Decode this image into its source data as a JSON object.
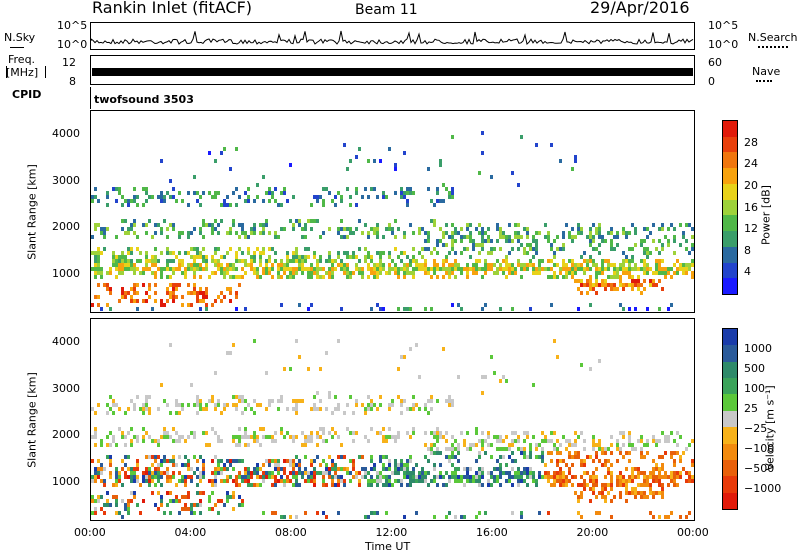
{
  "header": {
    "title": "Rankin Inlet (fitACF)",
    "beam": "Beam 11",
    "date": "29/Apr/2016"
  },
  "nsky_panel": {
    "left_label": "N.Sky",
    "right_label": "N.Search",
    "tick_top": "10^5",
    "tick_bottom": "10^0"
  },
  "freq_panel": {
    "left_label_1": "Freq.",
    "left_label_2": "[MHz]",
    "left_ticks": [
      "12",
      "8"
    ],
    "right_label": "Nave",
    "right_ticks": [
      "60",
      "0"
    ]
  },
  "cpid_panel": {
    "label": "CPID",
    "value": "twofsound 3503"
  },
  "chart_data": [
    {
      "type": "heatmap",
      "name": "power",
      "ylabel": "Slant Range [km]",
      "y_ticks": [
        1000,
        2000,
        3000,
        4000
      ],
      "ylim": [
        180,
        4500
      ],
      "x_ticks": [
        "00:00",
        "04:00",
        "08:00",
        "12:00",
        "16:00",
        "20:00",
        "00:00"
      ],
      "colorbar": {
        "label": "Power [dB]",
        "ticks": [
          4,
          8,
          12,
          16,
          20,
          24,
          28
        ],
        "colors": [
          "#1a1aff",
          "#2244cc",
          "#2a6aa0",
          "#3a9e6a",
          "#50b848",
          "#9ed23a",
          "#e8d21a",
          "#f7a20e",
          "#f0760e",
          "#e8400c",
          "#e01a0a"
        ]
      }
    },
    {
      "type": "heatmap",
      "name": "velocity",
      "ylabel": "Slant Range [km]",
      "y_ticks": [
        1000,
        2000,
        3000,
        4000
      ],
      "ylim": [
        180,
        4500
      ],
      "x_ticks": [
        "00:00",
        "04:00",
        "08:00",
        "12:00",
        "16:00",
        "20:00",
        "00:00"
      ],
      "xlabel": "Time UT",
      "colorbar": {
        "label": "Velocity [m s⁻¹]",
        "ticks": [
          "1000",
          "500",
          "100",
          "25",
          "−25",
          "−100",
          "−500",
          "−1000"
        ],
        "colors": [
          "#1a3caa",
          "#2a5a9a",
          "#2e8a6a",
          "#3aa35a",
          "#5bc83a",
          "#c8c8c8",
          "#f7b21a",
          "#f28a0e",
          "#e8600a",
          "#e83a0a",
          "#e01a0a"
        ]
      }
    }
  ]
}
